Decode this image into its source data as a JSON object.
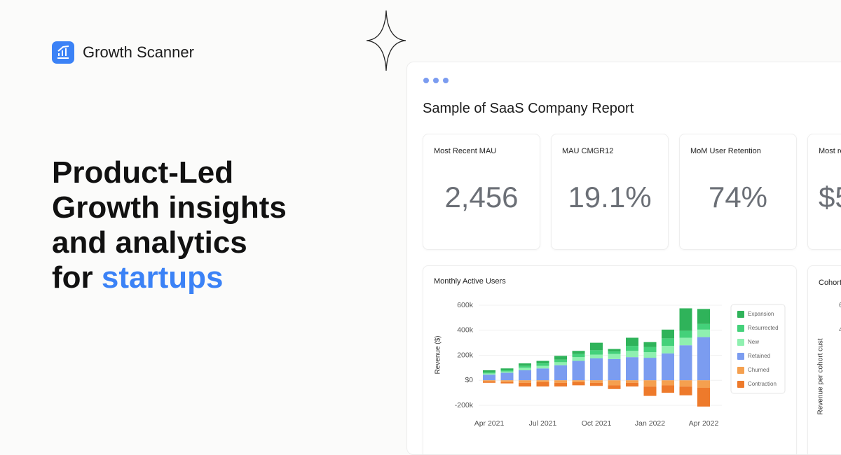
{
  "brand": {
    "name": "Growth Scanner"
  },
  "headline": {
    "lines": [
      "Product-Led",
      "Growth insights",
      "and analytics"
    ],
    "last_line": "for",
    "highlight": "startups"
  },
  "report": {
    "title": "Sample of SaaS Company Report",
    "kpis": [
      {
        "label": "Most Recent MAU",
        "value": "2,456"
      },
      {
        "label": "MAU CMGR12",
        "value": "19.1%"
      },
      {
        "label": "MoM User Retention",
        "value": "74%"
      },
      {
        "label": "Most re",
        "value": "$5"
      }
    ],
    "cohort_card": {
      "title": "Cohort",
      "y_label": "Revenue per cohort cust",
      "ticks": [
        "6",
        "4"
      ]
    }
  },
  "chart_data": {
    "type": "bar",
    "stacked": true,
    "title": "Monthly Active Users",
    "y_label": "Revenue ($)",
    "categories": [
      "Apr 2021",
      null,
      null,
      "Jul 2021",
      null,
      null,
      "Oct 2021",
      null,
      null,
      "Jan 2022",
      null,
      null,
      "Apr 2022"
    ],
    "series": [
      {
        "name": "Expansion",
        "color": "#2fb35a",
        "values": [
          15000,
          15000,
          20000,
          20000,
          30000,
          25000,
          60000,
          20000,
          65000,
          40000,
          70000,
          180000,
          120000
        ]
      },
      {
        "name": "Resurrected",
        "color": "#44d17a",
        "values": [
          10000,
          10000,
          15000,
          20000,
          20000,
          25000,
          35000,
          20000,
          40000,
          40000,
          60000,
          55000,
          45000
        ]
      },
      {
        "name": "New",
        "color": "#8ff0b0",
        "values": [
          10000,
          10000,
          20000,
          20000,
          25000,
          30000,
          30000,
          40000,
          50000,
          45000,
          60000,
          60000,
          60000
        ]
      },
      {
        "name": "Retained",
        "color": "#7b9cf0",
        "values": [
          45000,
          60000,
          80000,
          95000,
          120000,
          155000,
          175000,
          170000,
          185000,
          180000,
          215000,
          280000,
          345000
        ]
      },
      {
        "name": "Churned",
        "color": "#f5a04f",
        "values": [
          -10000,
          -15000,
          -20000,
          -15000,
          -20000,
          -15000,
          -20000,
          -40000,
          -20000,
          -50000,
          -40000,
          -50000,
          -60000
        ]
      },
      {
        "name": "Contraction",
        "color": "#ee7a2b",
        "values": [
          -10000,
          -10000,
          -30000,
          -35000,
          -30000,
          -25000,
          -25000,
          -30000,
          -30000,
          -75000,
          -60000,
          -70000,
          -150000
        ]
      }
    ],
    "ylim": [
      -200000,
      600000
    ],
    "yticks": [
      {
        "value": -200000,
        "label": "-200k"
      },
      {
        "value": 0,
        "label": "$0"
      },
      {
        "value": 200000,
        "label": "200k"
      },
      {
        "value": 400000,
        "label": "400k"
      },
      {
        "value": 600000,
        "label": "600k"
      }
    ],
    "grid": true,
    "legend": "right"
  }
}
